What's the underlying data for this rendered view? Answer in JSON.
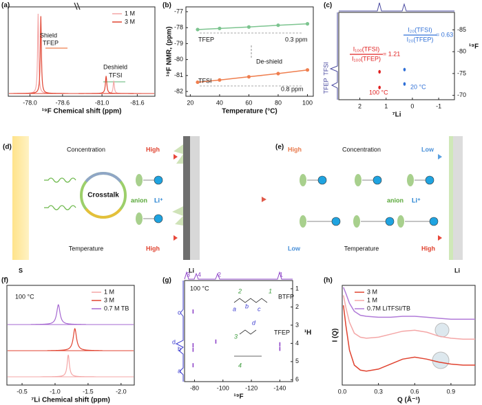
{
  "chart_data": [
    {
      "type": "spectrum",
      "panel": "(a)",
      "xlabel": "¹⁹F Chemical shift (ppm)",
      "xlim": [
        -77.6,
        -78.9
      ],
      "xlim_break": [
        -80.7,
        -81.9
      ],
      "xticks": [
        {
          "value": -78,
          "label": "-78.0"
        },
        -78.6,
        {
          "value": -81,
          "label": "-81.0"
        },
        -81.6
      ],
      "legend": "upper right",
      "series": [
        {
          "name": "1 M",
          "color": "#f4a6a6",
          "peaks": [
            {
              "position": -78.15,
              "height": 1.0,
              "width": 0.012
            },
            {
              "position": -81.2,
              "height": 0.16,
              "width": 0.012
            }
          ]
        },
        {
          "name": "3 M",
          "color": "#e0422f",
          "peaks": [
            {
              "position": -78.2,
              "height": 0.97,
              "width": 0.012
            },
            {
              "position": -81.07,
              "height": 0.22,
              "width": 0.014
            }
          ]
        }
      ],
      "annotations": {
        "shield": "Shield",
        "tfep": "TFEP",
        "deshield": "Deshield",
        "tfsi": "TFSI"
      }
    },
    {
      "type": "line",
      "panel": "(b)",
      "xlabel": "Temperature (°C)",
      "ylabel": "¹⁹F NMR, (ppm)",
      "xlim": [
        17,
        104
      ],
      "xticks": [
        20,
        40,
        60,
        80,
        100
      ],
      "ylim": [
        -82.3,
        -76.7
      ],
      "yticks": [
        -77,
        -78,
        -79,
        -80,
        -81,
        -82
      ],
      "markers": true,
      "series": [
        {
          "name": "TFEP",
          "color": "#7cc48f",
          "x": [
            25,
            40,
            60,
            80,
            100
          ],
          "values": [
            -78.12,
            -78.05,
            -77.96,
            -77.85,
            -77.76
          ]
        },
        {
          "name": "TFSI",
          "color": "#ef7e4e",
          "x": [
            25,
            40,
            60,
            80,
            100
          ],
          "values": [
            -81.42,
            -81.28,
            -81.08,
            -80.88,
            -80.65
          ]
        }
      ],
      "annotations": {
        "deshield": "De-shield",
        "tfep_shift": "0.3 ppm",
        "tfsi_shift": "0.8 ppm"
      }
    },
    {
      "type": "correlation_2d",
      "panel": "(c)",
      "xlabel": "⁷Li",
      "ylabel": "¹⁹F",
      "xlim": [
        2.8,
        -1.6
      ],
      "xticks": [
        2,
        1,
        0,
        -1
      ],
      "ylim": [
        -89,
        -69
      ],
      "yticks": [
        -85,
        -80,
        -75,
        -70
      ],
      "yreversed": true,
      "yaxis_side": "right",
      "marker": "dot",
      "series": [
        {
          "name": "100 °C",
          "color": "#e02020",
          "x": [
            1.25,
            1.25
          ],
          "values": [
            -75.4,
            -71.8
          ]
        },
        {
          "name": "20 °C",
          "color": "#2f6fd6",
          "x": [
            0.3,
            0.3
          ],
          "values": [
            -75.9,
            -72.6
          ]
        }
      ],
      "annotations": {
        "ratio_100_num": "I₁₀₀(TFSI)",
        "ratio_100_den": "I₁₀₀(TFEP)",
        "ratio_100_value": "= 1.21",
        "ratio_20_num": "I₂₀(TFSI)",
        "ratio_20_den": "I₂₀(TFEP)",
        "ratio_20_value": "= 0.63",
        "tfsi": "TFSI",
        "tfep": "TFEP"
      }
    },
    {
      "type": "spectrum",
      "panel": "(f)",
      "xlabel": "⁷Li Chemical shift (ppm)",
      "xlim": [
        -0.27,
        -2.2
      ],
      "xticks": [
        -0.5,
        {
          "value": -1,
          "label": "-1.0"
        },
        -1.5,
        {
          "value": -2,
          "label": "-2.0"
        }
      ],
      "stacked": true,
      "legend": "upper right",
      "series": [
        {
          "name": "1 M",
          "color": "#f4a6a6",
          "peaks": [
            {
              "position": -1.2,
              "height": 1.0,
              "width": 0.02
            }
          ]
        },
        {
          "name": "3 M",
          "color": "#e0422f",
          "peaks": [
            {
              "position": -1.3,
              "height": 1.0,
              "width": 0.03
            }
          ]
        },
        {
          "name": "0.7 M TB",
          "color": "#a567d1",
          "peaks": [
            {
              "position": -1.05,
              "height": 0.9,
              "width": 0.03
            }
          ]
        }
      ],
      "annotations": {
        "temperature": "100 °C"
      }
    },
    {
      "type": "correlation_2d",
      "panel": "(g)",
      "xlabel": "¹⁹F",
      "ylabel": "¹H",
      "xlim": [
        -73,
        -149
      ],
      "xticks": [
        -80,
        -100,
        -120,
        -140
      ],
      "ylim": [
        0.55,
        6.1
      ],
      "yticks": [
        1,
        2,
        3,
        4,
        5,
        6
      ],
      "yreversed": true,
      "yaxis_side": "right",
      "marker": "dash",
      "series": [
        {
          "color": "#8e44c8",
          "x": [
            -79,
            -79,
            -79,
            -79,
            -95,
            -140,
            -140
          ],
          "values": [
            2.25,
            4.1,
            4.35,
            5.2,
            3.9,
            4.05,
            4.3
          ]
        }
      ],
      "annotations": {
        "temperature": "100 °C",
        "btfp": "BTFP",
        "tfep": "TFEP",
        "f_labels": [
          "3",
          "4",
          "2",
          "1"
        ],
        "h_labels": [
          "a",
          "b",
          "c",
          "d"
        ]
      }
    },
    {
      "type": "line",
      "panel": "(h)",
      "xlabel": "Q (Å⁻¹)",
      "ylabel": "I (Q)",
      "xlim": [
        0,
        1.1
      ],
      "xticks": [
        {
          "value": 0,
          "label": "0.0"
        },
        0.3,
        0.6,
        0.9
      ],
      "ylim": [
        0,
        10
      ],
      "legend": "upper left",
      "series": [
        {
          "name": "3 M",
          "color": "#e0422f",
          "x": [
            0.01,
            0.03,
            0.06,
            0.1,
            0.15,
            0.2,
            0.3,
            0.4,
            0.5,
            0.6,
            0.7,
            0.8,
            0.9,
            1.0,
            1.1
          ],
          "values": [
            8.0,
            6.0,
            3.5,
            2.0,
            1.5,
            1.4,
            1.6,
            2.1,
            2.6,
            2.8,
            2.6,
            2.3,
            2.1,
            2.0,
            2.0
          ]
        },
        {
          "name": "1 M",
          "color": "#f4a6a6",
          "x": [
            0.01,
            0.03,
            0.06,
            0.1,
            0.15,
            0.2,
            0.3,
            0.4,
            0.5,
            0.6,
            0.7,
            0.8,
            0.9,
            1.0,
            1.1
          ],
          "values": [
            9.0,
            7.8,
            6.3,
            5.2,
            4.8,
            4.7,
            4.8,
            5.1,
            5.4,
            5.5,
            5.3,
            4.9,
            4.7,
            4.6,
            4.6
          ]
        },
        {
          "name": "0.7M LiTFSI/TB",
          "color": "#b07ad8",
          "x": [
            0.01,
            0.03,
            0.06,
            0.1,
            0.15,
            0.2,
            0.3,
            0.4,
            0.5,
            0.6,
            0.7,
            0.8,
            0.9,
            1.0,
            1.1
          ],
          "values": [
            9.8,
            9.2,
            8.2,
            7.4,
            7.0,
            6.9,
            6.8,
            6.8,
            6.9,
            6.9,
            6.8,
            6.7,
            6.6,
            6.6,
            6.6
          ]
        }
      ]
    }
  ],
  "diagrams": {
    "d": {
      "panel": "(d)",
      "concentration": "Concentration",
      "conc_level": "High",
      "crosstalk": "Crosstalk",
      "anion": "anion",
      "li_ion": "Li⁺",
      "temperature": "Temperature",
      "temp_level": "High",
      "left_electrode": "S",
      "right_electrode": "Li"
    },
    "e": {
      "panel": "(e)",
      "conc_start": "High",
      "concentration": "Concentration",
      "conc_end": "Low",
      "anion": "anion",
      "li_ion": "Li⁺",
      "temp_start": "Low",
      "temperature": "Temperature",
      "temp_end": "High",
      "right_electrode": "Li"
    }
  }
}
